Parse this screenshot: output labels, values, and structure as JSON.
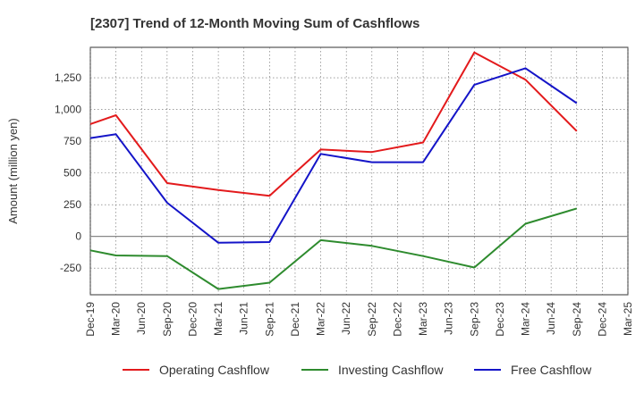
{
  "chart_data": {
    "type": "line",
    "title": "[2307]  Trend of 12-Month Moving Sum of Cashflows",
    "xlabel": "",
    "ylabel": "Amount (million yen)",
    "categories": [
      "Dec-19",
      "Mar-20",
      "Jun-20",
      "Sep-20",
      "Dec-20",
      "Mar-21",
      "Jun-21",
      "Sep-21",
      "Dec-21",
      "Mar-22",
      "Jun-22",
      "Sep-22",
      "Dec-22",
      "Mar-23",
      "Jun-23",
      "Sep-23",
      "Dec-23",
      "Mar-24",
      "Jun-24",
      "Sep-24",
      "Dec-24",
      "Mar-25"
    ],
    "yticks": [
      -250,
      0,
      250,
      500,
      750,
      1000,
      1250
    ],
    "ytick_labels": [
      "-250",
      "0",
      "250",
      "500",
      "750",
      "1,000",
      "1,250"
    ],
    "ylim": [
      -460,
      1490
    ],
    "grid": true,
    "legend_position": "bottom",
    "series": [
      {
        "name": "Operating Cashflow",
        "color": "#e31a1c",
        "values": [
          885,
          955,
          null,
          420,
          null,
          365,
          null,
          320,
          null,
          685,
          null,
          665,
          null,
          740,
          null,
          1450,
          null,
          1235,
          null,
          830,
          null,
          null
        ]
      },
      {
        "name": "Investing Cashflow",
        "color": "#2e8b2e",
        "values": [
          -110,
          -150,
          null,
          -155,
          null,
          -415,
          null,
          -365,
          null,
          -30,
          null,
          -75,
          null,
          -155,
          null,
          -245,
          null,
          100,
          null,
          220,
          null,
          null
        ]
      },
      {
        "name": "Free Cashflow",
        "color": "#1414c8",
        "values": [
          775,
          805,
          null,
          265,
          null,
          -50,
          null,
          -45,
          null,
          650,
          null,
          585,
          null,
          585,
          null,
          1195,
          null,
          1325,
          null,
          1050,
          null,
          null
        ]
      }
    ]
  }
}
